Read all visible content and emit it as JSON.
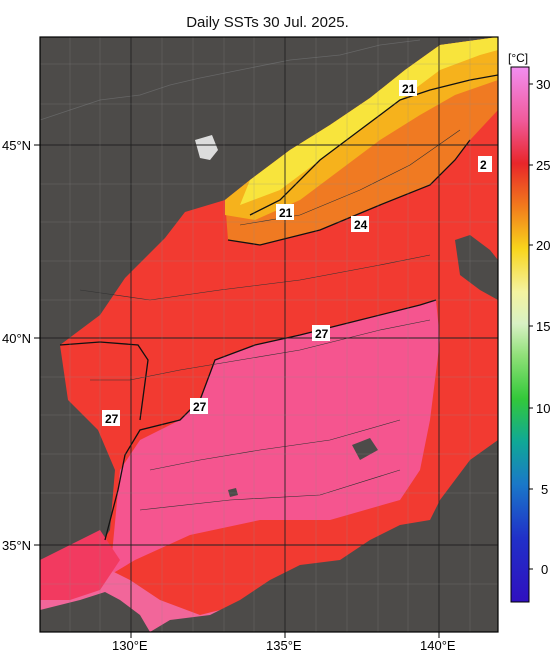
{
  "title": "Daily SSTs 30 Jul. 2025.",
  "unit_label": "[°C]",
  "lat_labels": [
    "45°N",
    "40°N",
    "35°N"
  ],
  "lon_labels": [
    "130°E",
    "135°E",
    "140°E"
  ],
  "colorbar_ticks": [
    "30",
    "25",
    "20",
    "15",
    "10",
    "5",
    "0"
  ],
  "contour_labels": [
    "21",
    "2",
    "21",
    "24",
    "27",
    "27",
    "27"
  ],
  "colors": {
    "land": "#4d4b49",
    "warm_sea": "#f5558f",
    "hot_sea": "#f23a31",
    "mid_sea": "#f07a22",
    "cool_sea": "#f6b21c",
    "cold_sea": "#f8e43c"
  }
}
